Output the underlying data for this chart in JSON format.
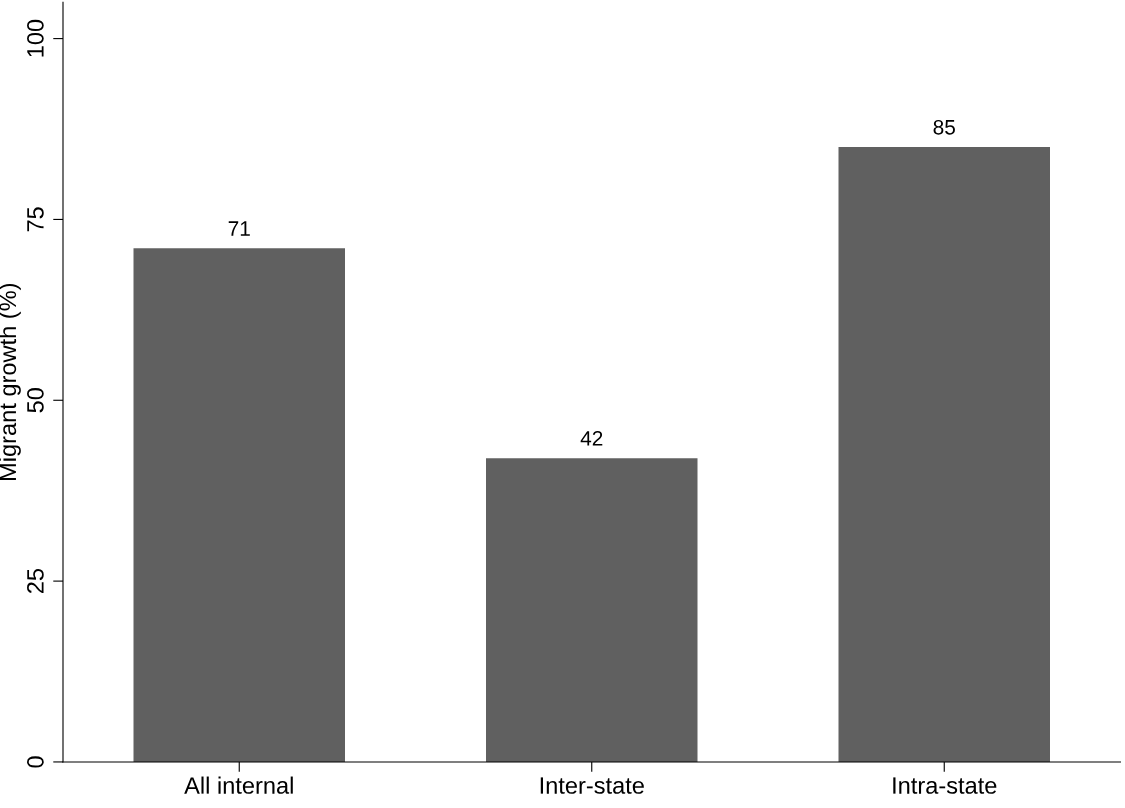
{
  "chart_data": {
    "type": "bar",
    "ylabel": "Migrant growth (%)",
    "categories": [
      "All internal",
      "Inter-state",
      "Intra-state"
    ],
    "values": [
      71,
      42,
      85
    ],
    "color": "#606060",
    "data_labels": true,
    "ylim": [
      0,
      105
    ],
    "yticks": [
      0,
      25,
      50,
      75,
      100
    ],
    "grid": false,
    "legend": false
  }
}
